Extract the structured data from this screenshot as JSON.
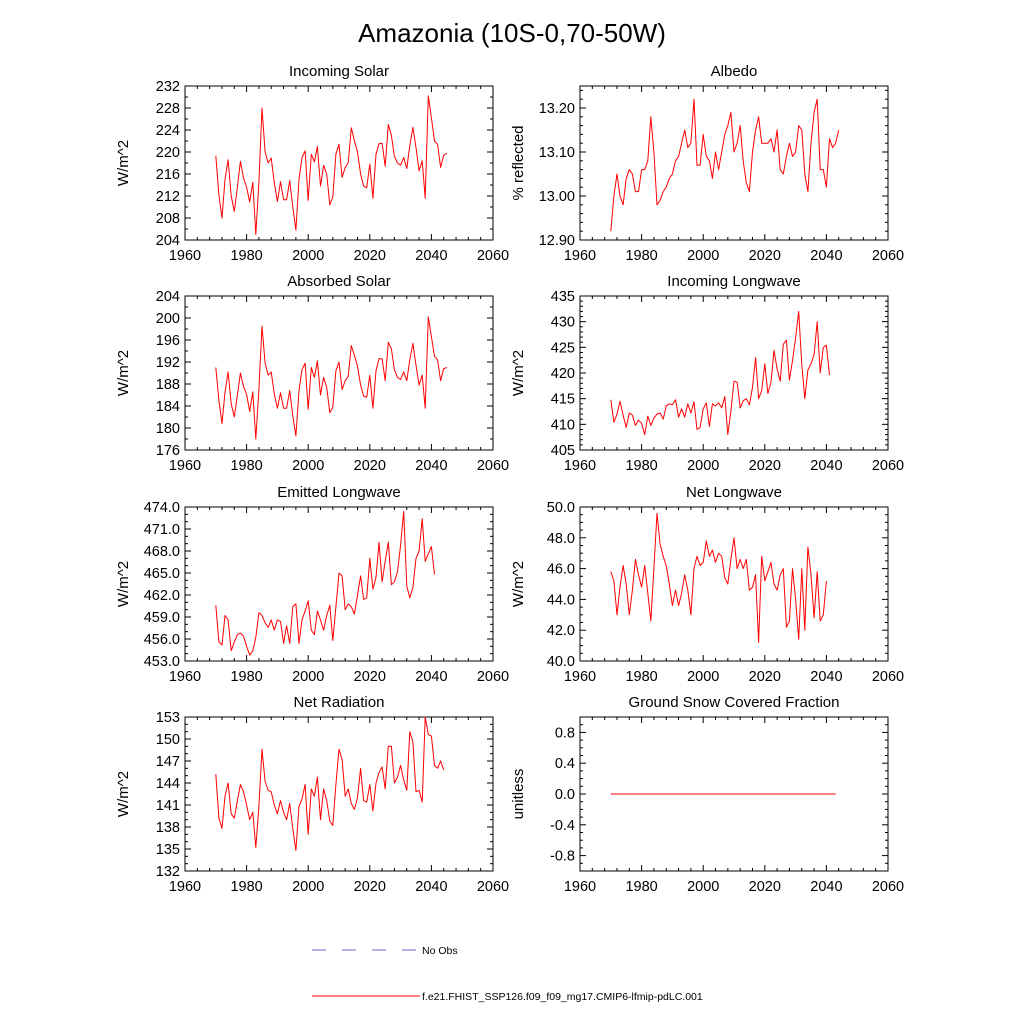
{
  "figure_title": "Amazonia (10S-0,70-50W)",
  "colors": {
    "model": "#ff0000",
    "obs": "#6a6ad0",
    "axis": "#000000"
  },
  "legend": {
    "obs_label": "No Obs",
    "model_label": "f.e21.FHIST_SSP126.f09_f09_mg17.CMIP6-lfmip-pdLC.001"
  },
  "chart_data": [
    {
      "id": "incoming-solar",
      "type": "line",
      "title": "Incoming Solar",
      "ylabel": "W/m^2",
      "xlabel": "",
      "xlim": [
        1960,
        2060
      ],
      "xticks": [
        1960,
        1980,
        2000,
        2020,
        2040,
        2060
      ],
      "xminor": 4,
      "ylim": [
        204,
        232
      ],
      "yticks": [
        204,
        208,
        212,
        216,
        220,
        224,
        228,
        232
      ],
      "yticklabels": [
        "204",
        "208",
        "212",
        "216",
        "220",
        "224",
        "228",
        "232"
      ],
      "yminor": 1,
      "series": [
        {
          "name": "f.e21.FHIST_SSP126.f09_f09_mg17.CMIP6-lfmip-pdLC.001",
          "x_start": 1970,
          "values": [
            219.3,
            212.2,
            208.0,
            215.0,
            218.6,
            212.0,
            209.2,
            213.6,
            218.3,
            215.3,
            213.6,
            210.9,
            214.5,
            205.0,
            214.5,
            228.0,
            220.0,
            218.0,
            218.9,
            214.4,
            211.0,
            214.6,
            211.3,
            211.3,
            214.8,
            210.0,
            205.8,
            215.0,
            219.0,
            220.2,
            211.2,
            219.6,
            218.2,
            221.0,
            213.8,
            217.6,
            216.0,
            210.4,
            211.8,
            219.6,
            221.4,
            215.4,
            217.2,
            218.0,
            224.4,
            222.0,
            220.0,
            216.0,
            213.8,
            213.5,
            217.8,
            211.6,
            219.6,
            221.5,
            221.6,
            217.4,
            225.0,
            223.0,
            219.2,
            218.0,
            217.6,
            219.0,
            217.0,
            221.2,
            224.5,
            220.8,
            216.6,
            218.4,
            211.6,
            230.2,
            226.2,
            222.0,
            221.4,
            217.2,
            219.4,
            219.8
          ]
        }
      ]
    },
    {
      "id": "albedo",
      "type": "line",
      "title": "Albedo",
      "ylabel": "% reflected",
      "xlabel": "",
      "xlim": [
        1960,
        2060
      ],
      "xticks": [
        1960,
        1980,
        2000,
        2020,
        2040,
        2060
      ],
      "xminor": 4,
      "ylim": [
        12.9,
        13.25
      ],
      "yticks": [
        12.9,
        13.0,
        13.1,
        13.2
      ],
      "yticklabels": [
        "12.90",
        "13.00",
        "13.10",
        "13.20"
      ],
      "yminor": 4,
      "series": [
        {
          "name": "f.e21.FHIST_SSP126.f09_f09_mg17.CMIP6-lfmip-pdLC.001",
          "x_start": 1970,
          "values": [
            12.92,
            13.0,
            13.05,
            13.0,
            12.98,
            13.04,
            13.06,
            13.05,
            13.01,
            13.01,
            13.06,
            13.06,
            13.08,
            13.18,
            13.1,
            12.98,
            12.99,
            13.01,
            13.02,
            13.04,
            13.05,
            13.08,
            13.09,
            13.12,
            13.15,
            13.11,
            13.12,
            13.22,
            13.07,
            13.07,
            13.14,
            13.09,
            13.08,
            13.04,
            13.1,
            13.06,
            13.1,
            13.14,
            13.16,
            13.19,
            13.1,
            13.12,
            13.16,
            13.08,
            13.03,
            13.01,
            13.1,
            13.15,
            13.18,
            13.12,
            13.12,
            13.12,
            13.13,
            13.1,
            13.15,
            13.06,
            13.05,
            13.09,
            13.12,
            13.09,
            13.1,
            13.16,
            13.15,
            13.05,
            13.01,
            13.12,
            13.19,
            13.22,
            13.06,
            13.06,
            13.02,
            13.13,
            13.11,
            13.12,
            13.15
          ]
        }
      ]
    },
    {
      "id": "absorbed-solar",
      "type": "line",
      "title": "Absorbed Solar",
      "ylabel": "W/m^2",
      "xlabel": "",
      "xlim": [
        1960,
        2060
      ],
      "xticks": [
        1960,
        1980,
        2000,
        2020,
        2040,
        2060
      ],
      "xminor": 4,
      "ylim": [
        176,
        204
      ],
      "yticks": [
        176,
        180,
        184,
        188,
        192,
        196,
        200,
        204
      ],
      "yticklabels": [
        "176",
        "180",
        "184",
        "188",
        "192",
        "196",
        "200",
        "204"
      ],
      "yminor": 1,
      "series": [
        {
          "name": "f.e21.FHIST_SSP126.f09_f09_mg17.CMIP6-lfmip-pdLC.001",
          "x_start": 1970,
          "values": [
            191.0,
            185.0,
            180.8,
            186.5,
            190.2,
            184.4,
            182.0,
            186.0,
            190.0,
            187.6,
            186.1,
            183.0,
            186.6,
            178.0,
            187.0,
            198.5,
            191.8,
            189.6,
            190.2,
            186.2,
            183.6,
            186.4,
            183.6,
            183.6,
            186.8,
            182.2,
            178.6,
            186.8,
            190.6,
            191.8,
            183.4,
            191.0,
            189.2,
            192.2,
            186.0,
            189.2,
            187.4,
            182.8,
            183.8,
            190.4,
            192.0,
            187.0,
            188.6,
            189.4,
            195.0,
            193.2,
            191.2,
            187.8,
            185.8,
            185.6,
            189.6,
            183.6,
            190.4,
            192.6,
            192.6,
            188.6,
            195.6,
            194.4,
            190.6,
            189.2,
            188.8,
            190.2,
            188.6,
            192.4,
            195.4,
            191.4,
            187.8,
            189.6,
            183.6,
            200.2,
            196.6,
            193.0,
            192.4,
            188.6,
            190.8,
            191.0
          ]
        }
      ]
    },
    {
      "id": "incoming-longwave",
      "type": "line",
      "title": "Incoming Longwave",
      "ylabel": "W/m^2",
      "xlabel": "",
      "xlim": [
        1960,
        2060
      ],
      "xticks": [
        1960,
        1980,
        2000,
        2020,
        2040,
        2060
      ],
      "xminor": 4,
      "ylim": [
        405,
        435
      ],
      "yticks": [
        405,
        410,
        415,
        420,
        425,
        430,
        435
      ],
      "yticklabels": [
        "405",
        "410",
        "415",
        "420",
        "425",
        "430",
        "435"
      ],
      "yminor": 4,
      "series": [
        {
          "name": "f.e21.FHIST_SSP126.f09_f09_mg17.CMIP6-lfmip-pdLC.001",
          "x_start": 1970,
          "values": [
            414.8,
            410.4,
            412.0,
            414.5,
            411.8,
            409.4,
            412.2,
            411.8,
            409.8,
            410.8,
            410.2,
            408.0,
            411.6,
            409.8,
            411.2,
            412.0,
            412.2,
            411.0,
            413.6,
            414.0,
            413.8,
            414.8,
            411.4,
            413.0,
            411.4,
            414.0,
            412.2,
            414.4,
            409.0,
            409.4,
            413.0,
            414.2,
            409.6,
            414.0,
            413.6,
            414.2,
            413.2,
            415.4,
            408.0,
            412.6,
            418.4,
            418.2,
            413.2,
            414.6,
            415.0,
            413.8,
            417.2,
            423.0,
            415.0,
            416.6,
            421.8,
            416.0,
            418.2,
            424.4,
            420.8,
            418.4,
            425.6,
            426.4,
            418.6,
            422.4,
            426.8,
            432.0,
            421.6,
            415.0,
            420.6,
            421.8,
            423.6,
            430.0,
            420.0,
            425.0,
            425.4,
            419.6
          ]
        }
      ]
    },
    {
      "id": "emitted-longwave",
      "type": "line",
      "title": "Emitted Longwave",
      "ylabel": "W/m^2",
      "xlabel": "",
      "xlim": [
        1960,
        2060
      ],
      "xticks": [
        1960,
        1980,
        2000,
        2020,
        2040,
        2060
      ],
      "xminor": 4,
      "ylim": [
        453,
        474
      ],
      "yticks": [
        453,
        456,
        459,
        462,
        465,
        468,
        471,
        474
      ],
      "yticklabels": [
        "453.0",
        "456.0",
        "459.0",
        "462.0",
        "465.0",
        "468.0",
        "471.0",
        "474.0"
      ],
      "yminor": 2,
      "series": [
        {
          "name": "f.e21.FHIST_SSP126.f09_f09_mg17.CMIP6-lfmip-pdLC.001",
          "x_start": 1970,
          "values": [
            460.6,
            455.6,
            455.2,
            459.2,
            458.6,
            454.4,
            455.6,
            456.6,
            456.8,
            456.4,
            455.0,
            453.8,
            454.4,
            456.2,
            459.6,
            459.2,
            458.2,
            457.6,
            458.6,
            457.2,
            458.6,
            458.4,
            455.4,
            457.8,
            455.4,
            460.4,
            460.8,
            455.4,
            458.6,
            459.8,
            461.2,
            457.2,
            456.6,
            459.8,
            458.6,
            457.2,
            459.2,
            460.6,
            455.8,
            460.4,
            465.0,
            464.6,
            460.0,
            460.8,
            460.4,
            459.4,
            462.0,
            464.6,
            461.4,
            461.6,
            467.0,
            462.8,
            464.4,
            469.2,
            463.8,
            466.6,
            469.2,
            463.4,
            463.8,
            465.2,
            468.8,
            473.4,
            463.2,
            461.6,
            463.0,
            467.0,
            468.0,
            472.4,
            466.6,
            467.6,
            468.6,
            464.8
          ]
        }
      ]
    },
    {
      "id": "net-longwave",
      "type": "line",
      "title": "Net Longwave",
      "ylabel": "W/m^2",
      "xlabel": "",
      "xlim": [
        1960,
        2060
      ],
      "xticks": [
        1960,
        1980,
        2000,
        2020,
        2040,
        2060
      ],
      "xminor": 4,
      "ylim": [
        40,
        50
      ],
      "yticks": [
        40,
        42,
        44,
        46,
        48,
        50
      ],
      "yticklabels": [
        "40.0",
        "42.0",
        "44.0",
        "46.0",
        "48.0",
        "50.0"
      ],
      "yminor": 3,
      "series": [
        {
          "name": "f.e21.FHIST_SSP126.f09_f09_mg17.CMIP6-lfmip-pdLC.001",
          "x_start": 1970,
          "values": [
            45.8,
            45.2,
            43.0,
            44.8,
            46.2,
            45.0,
            43.0,
            44.6,
            46.6,
            45.6,
            44.8,
            46.2,
            44.4,
            42.6,
            46.0,
            49.6,
            47.6,
            46.8,
            46.2,
            45.0,
            43.6,
            44.6,
            43.6,
            44.4,
            45.6,
            44.6,
            43.0,
            46.0,
            46.8,
            46.2,
            46.4,
            47.8,
            46.8,
            47.2,
            46.4,
            47.0,
            46.8,
            45.4,
            45.0,
            46.6,
            48.0,
            46.0,
            46.6,
            46.0,
            46.6,
            44.6,
            44.8,
            45.6,
            41.2,
            46.8,
            45.2,
            45.8,
            46.4,
            45.0,
            44.6,
            45.6,
            46.0,
            42.2,
            42.6,
            46.0,
            44.0,
            41.4,
            46.0,
            42.0,
            47.4,
            45.6,
            42.8,
            45.8,
            42.6,
            43.0,
            45.2
          ]
        }
      ]
    },
    {
      "id": "net-radiation",
      "type": "line",
      "title": "Net Radiation",
      "ylabel": "W/m^2",
      "xlabel": "",
      "xlim": [
        1960,
        2060
      ],
      "xticks": [
        1960,
        1980,
        2000,
        2020,
        2040,
        2060
      ],
      "xminor": 4,
      "ylim": [
        132,
        153
      ],
      "yticks": [
        132,
        135,
        138,
        141,
        144,
        147,
        150,
        153
      ],
      "yticklabels": [
        "132",
        "135",
        "138",
        "141",
        "144",
        "147",
        "150",
        "153"
      ],
      "yminor": 2,
      "series": [
        {
          "name": "f.e21.FHIST_SSP126.f09_f09_mg17.CMIP6-lfmip-pdLC.001",
          "x_start": 1970,
          "values": [
            145.2,
            139.2,
            137.8,
            142.2,
            144.0,
            139.8,
            139.2,
            141.6,
            143.8,
            142.8,
            141.0,
            139.0,
            140.0,
            135.2,
            140.8,
            148.6,
            144.2,
            143.0,
            142.8,
            141.0,
            139.8,
            141.6,
            140.0,
            139.0,
            141.2,
            137.8,
            134.8,
            140.8,
            141.8,
            143.8,
            137.0,
            143.2,
            142.2,
            144.8,
            139.0,
            143.2,
            141.6,
            138.8,
            138.2,
            143.8,
            148.6,
            147.2,
            142.2,
            143.2,
            141.2,
            140.4,
            142.0,
            146.0,
            141.6,
            141.4,
            143.8,
            140.2,
            144.0,
            145.4,
            146.2,
            143.2,
            149.0,
            149.0,
            144.0,
            144.8,
            146.4,
            144.4,
            143.0,
            151.0,
            149.6,
            142.8,
            143.0,
            141.4,
            153.0,
            150.6,
            150.4,
            146.4,
            146.0,
            147.0,
            145.8
          ]
        }
      ]
    },
    {
      "id": "ground-snow-covered-fraction",
      "type": "line",
      "title": "Ground Snow Covered Fraction",
      "ylabel": "unitless",
      "xlabel": "",
      "xlim": [
        1960,
        2060
      ],
      "xticks": [
        1960,
        1980,
        2000,
        2020,
        2040,
        2060
      ],
      "xminor": 4,
      "ylim": [
        -1.0,
        1.0
      ],
      "yticks": [
        -0.8,
        -0.4,
        0.0,
        0.4,
        0.8
      ],
      "yticklabels": [
        "-0.8",
        "-0.4",
        "0.0",
        "0.4",
        "0.8"
      ],
      "yminor": 3,
      "series": [
        {
          "name": "f.e21.FHIST_SSP126.f09_f09_mg17.CMIP6-lfmip-pdLC.001",
          "x_start": 1970,
          "values": [
            0,
            0,
            0,
            0,
            0,
            0,
            0,
            0,
            0,
            0,
            0,
            0,
            0,
            0,
            0,
            0,
            0,
            0,
            0,
            0,
            0,
            0,
            0,
            0,
            0,
            0,
            0,
            0,
            0,
            0,
            0,
            0,
            0,
            0,
            0,
            0,
            0,
            0,
            0,
            0,
            0,
            0,
            0,
            0,
            0,
            0,
            0,
            0,
            0,
            0,
            0,
            0,
            0,
            0,
            0,
            0,
            0,
            0,
            0,
            0,
            0,
            0,
            0,
            0,
            0,
            0,
            0,
            0,
            0,
            0,
            0,
            0,
            0,
            0
          ]
        }
      ]
    }
  ]
}
